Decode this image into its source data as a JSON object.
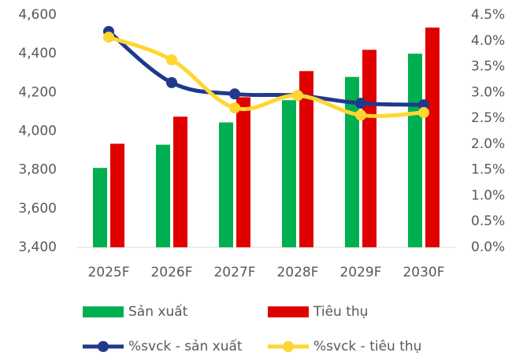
{
  "chart_data": {
    "type": "combo",
    "categories": [
      "2025F",
      "2026F",
      "2027F",
      "2028F",
      "2029F",
      "2030F"
    ],
    "series": [
      {
        "name": "Sản xuất",
        "type": "bar",
        "color": "#00b050",
        "values": [
          3810,
          3930,
          4045,
          4160,
          4280,
          4400
        ]
      },
      {
        "name": "Tiêu thụ",
        "type": "bar",
        "color": "#e00000",
        "values": [
          3935,
          4075,
          4175,
          4310,
          4420,
          4535
        ]
      },
      {
        "name": "%svck - sản xuất",
        "type": "line",
        "axis": "y2",
        "color": "#1f3a8a",
        "values": [
          4.18,
          3.19,
          2.97,
          2.94,
          2.79,
          2.76
        ]
      },
      {
        "name": "%svck - tiêu thụ",
        "type": "line",
        "axis": "y2",
        "color": "#ffd632",
        "values": [
          4.07,
          3.63,
          2.7,
          2.94,
          2.56,
          2.61
        ]
      }
    ],
    "ylim": [
      3400,
      4600
    ],
    "yticks": [
      {
        "value": 3400,
        "label": "3,400"
      },
      {
        "value": 3600,
        "label": "3,600"
      },
      {
        "value": 3800,
        "label": "3,800"
      },
      {
        "value": 4000,
        "label": "4,000"
      },
      {
        "value": 4200,
        "label": "4,200"
      },
      {
        "value": 4400,
        "label": "4,400"
      },
      {
        "value": 4600,
        "label": "4,600"
      }
    ],
    "y2lim": [
      0,
      4.5
    ],
    "y2ticks": [
      {
        "value": 0,
        "label": "0.0%"
      },
      {
        "value": 0.5,
        "label": "0.5%"
      },
      {
        "value": 1,
        "label": "1.0%"
      },
      {
        "value": 1.5,
        "label": "1.5%"
      },
      {
        "value": 2,
        "label": "2.0%"
      },
      {
        "value": 2.5,
        "label": "2.5%"
      },
      {
        "value": 3,
        "label": "3.0%"
      },
      {
        "value": 3.5,
        "label": "3.5%"
      },
      {
        "value": 4,
        "label": "4.0%"
      },
      {
        "value": 4.5,
        "label": "4.5%"
      }
    ],
    "grid": false
  }
}
